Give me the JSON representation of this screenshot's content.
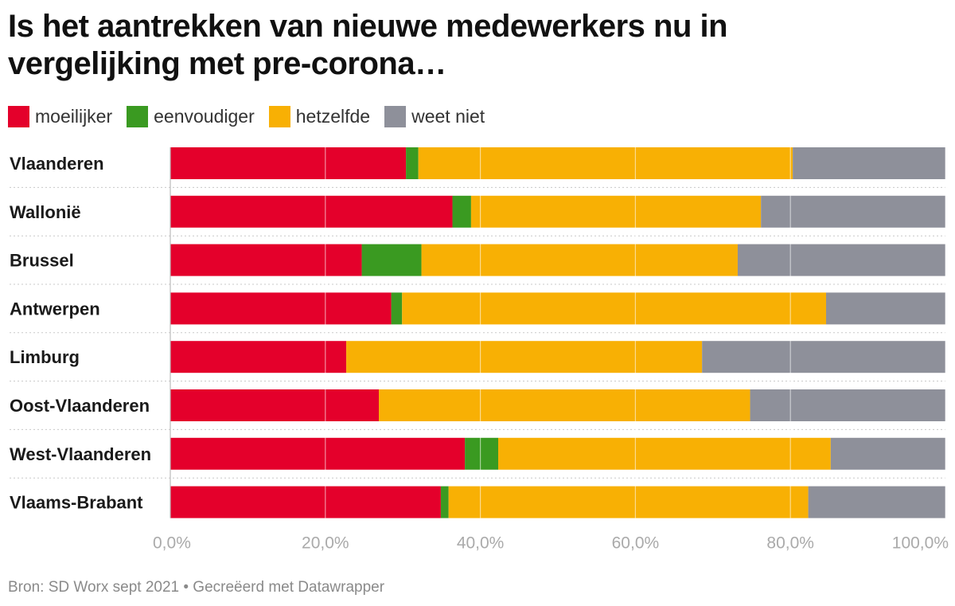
{
  "title": "Is het aantrekken van nieuwe medewerkers nu in vergelijking met pre-corona…",
  "legend": [
    {
      "label": "moeilijker",
      "color": "#e4002b"
    },
    {
      "label": "eenvoudiger",
      "color": "#3a9a21"
    },
    {
      "label": "hetzelfde",
      "color": "#f8b004"
    },
    {
      "label": "weet niet",
      "color": "#8e909a"
    }
  ],
  "source": "Bron: SD Worx sept 2021 • Gecreëerd met Datawrapper",
  "chart_data": {
    "type": "bar",
    "orientation": "horizontal",
    "stacked": true,
    "title": "Is het aantrekken van nieuwe medewerkers nu in vergelijking met pre-corona…",
    "categories": [
      "Vlaanderen",
      "Wallonië",
      "Brussel",
      "Antwerpen",
      "Limburg",
      "Oost-Vlaanderen",
      "West-Vlaanderen",
      "Vlaams-Brabant"
    ],
    "series": [
      {
        "name": "moeilijker",
        "color": "#e4002b",
        "values": [
          30.4,
          36.4,
          24.7,
          28.5,
          22.7,
          26.9,
          38.0,
          34.9
        ]
      },
      {
        "name": "eenvoudiger",
        "color": "#3a9a21",
        "values": [
          1.6,
          2.4,
          7.7,
          1.4,
          0,
          0,
          4.3,
          1.0
        ]
      },
      {
        "name": "hetzelfde",
        "color": "#f8b004",
        "values": [
          48.3,
          37.4,
          40.8,
          54.7,
          45.9,
          47.9,
          42.9,
          46.4
        ]
      },
      {
        "name": "weet niet",
        "color": "#8e909a",
        "values": [
          19.7,
          23.8,
          26.8,
          15.4,
          31.4,
          25.2,
          14.8,
          17.7
        ]
      }
    ],
    "x_ticks": [
      "0,0%",
      "20,0%",
      "40,0%",
      "60,0%",
      "80,0%",
      "100,0%"
    ],
    "xlim": [
      0,
      100
    ],
    "grid": true
  }
}
